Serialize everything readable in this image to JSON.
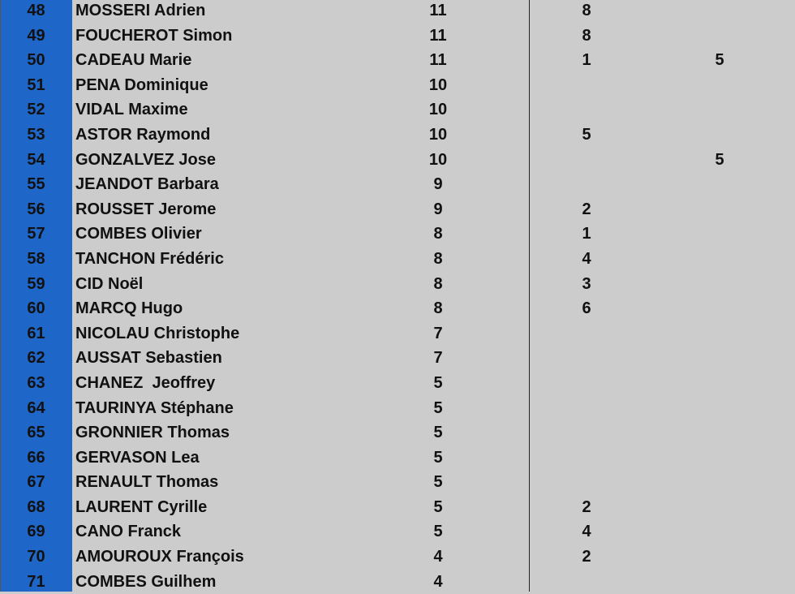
{
  "colors": {
    "rank_column": "#1f66c9",
    "background": "#cccccc"
  },
  "rows": [
    {
      "rank": "48",
      "name": "MOSSERI Adrien",
      "score": "11",
      "col2": "8",
      "col3": ""
    },
    {
      "rank": "49",
      "name": "FOUCHEROT Simon",
      "score": "11",
      "col2": "8",
      "col3": ""
    },
    {
      "rank": "50",
      "name": "CADEAU Marie",
      "score": "11",
      "col2": "1",
      "col3": "5"
    },
    {
      "rank": "51",
      "name": "PENA Dominique",
      "score": "10",
      "col2": "",
      "col3": ""
    },
    {
      "rank": "52",
      "name": "VIDAL Maxime",
      "score": "10",
      "col2": "",
      "col3": ""
    },
    {
      "rank": "53",
      "name": "ASTOR Raymond",
      "score": "10",
      "col2": "5",
      "col3": ""
    },
    {
      "rank": "54",
      "name": "GONZALVEZ Jose",
      "score": "10",
      "col2": "",
      "col3": "5"
    },
    {
      "rank": "55",
      "name": "JEANDOT Barbara",
      "score": "9",
      "col2": "",
      "col3": ""
    },
    {
      "rank": "56",
      "name": "ROUSSET Jerome",
      "score": "9",
      "col2": "2",
      "col3": ""
    },
    {
      "rank": "57",
      "name": "COMBES Olivier",
      "score": "8",
      "col2": "1",
      "col3": ""
    },
    {
      "rank": "58",
      "name": "TANCHON Frédéric",
      "score": "8",
      "col2": "4",
      "col3": ""
    },
    {
      "rank": "59",
      "name": "CID Noël",
      "score": "8",
      "col2": "3",
      "col3": ""
    },
    {
      "rank": "60",
      "name": "MARCQ Hugo",
      "score": "8",
      "col2": "6",
      "col3": ""
    },
    {
      "rank": "61",
      "name": "NICOLAU Christophe",
      "score": "7",
      "col2": "",
      "col3": ""
    },
    {
      "rank": "62",
      "name": "AUSSAT Sebastien",
      "score": "7",
      "col2": "",
      "col3": ""
    },
    {
      "rank": "63",
      "name": "CHANEZ  Jeoffrey",
      "score": "5",
      "col2": "",
      "col3": ""
    },
    {
      "rank": "64",
      "name": "TAURINYA Stéphane",
      "score": "5",
      "col2": "",
      "col3": ""
    },
    {
      "rank": "65",
      "name": "GRONNIER Thomas",
      "score": "5",
      "col2": "",
      "col3": ""
    },
    {
      "rank": "66",
      "name": "GERVASON Lea",
      "score": "5",
      "col2": "",
      "col3": ""
    },
    {
      "rank": "67",
      "name": "RENAULT Thomas",
      "score": "5",
      "col2": "",
      "col3": ""
    },
    {
      "rank": "68",
      "name": "LAURENT Cyrille",
      "score": "5",
      "col2": "2",
      "col3": ""
    },
    {
      "rank": "69",
      "name": "CANO Franck",
      "score": "5",
      "col2": "4",
      "col3": ""
    },
    {
      "rank": "70",
      "name": "AMOUROUX François",
      "score": "4",
      "col2": "2",
      "col3": ""
    },
    {
      "rank": "71",
      "name": "COMBES Guilhem",
      "score": "4",
      "col2": "",
      "col3": ""
    }
  ]
}
